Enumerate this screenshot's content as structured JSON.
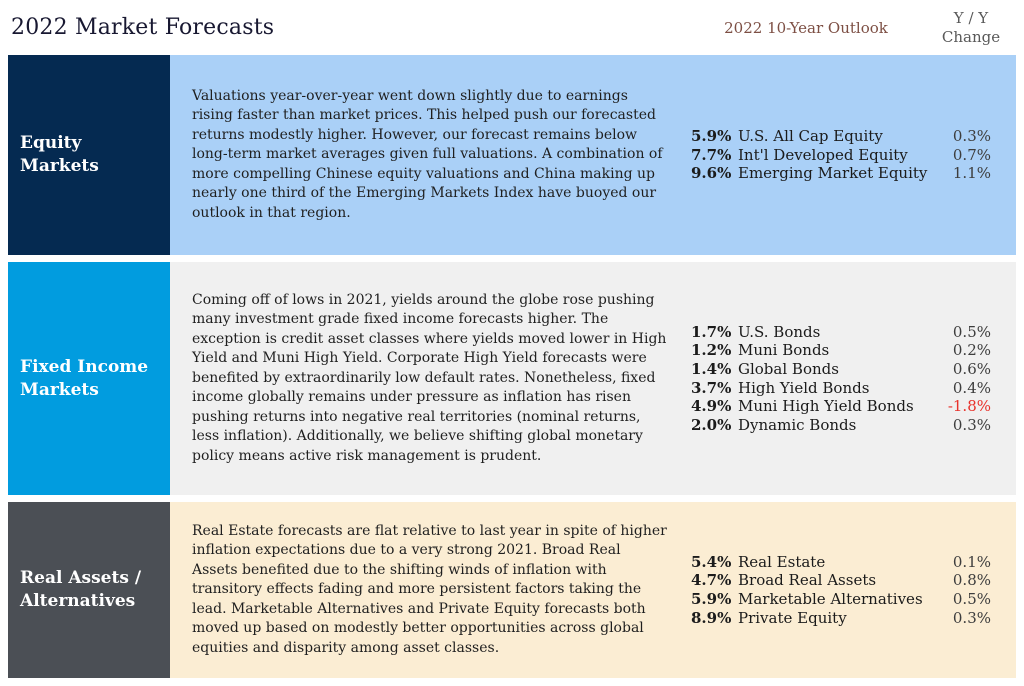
{
  "header": {
    "title": "2022 Market Forecasts",
    "outlook_label": "2022 10-Year Outlook",
    "yy_line1": "Y / Y",
    "yy_line2": "Change"
  },
  "colors": {
    "title_text": "#181831",
    "outlook_header_text": "#7d4f44",
    "yy_header_text": "#595959",
    "negative_change": "#e8322b",
    "equity_sidebar": "#052a51",
    "equity_background": "#aad0f7",
    "fixed_income_sidebar": "#019cdf",
    "fixed_income_background": "#f0f0f0",
    "real_assets_sidebar": "#4b4f55",
    "real_assets_background": "#fbedd3"
  },
  "sections": [
    {
      "id": "equity-markets",
      "label": "Equity Markets",
      "sidebar_color": "#052a51",
      "bg_color": "#aad0f7",
      "description": "Valuations year-over-year went down slightly due to earnings rising faster than market prices. This helped push our forecasted returns modestly higher. However, our forecast remains below long-term market averages given full valuations. A combination of more compelling Chinese equity valuations and China making up nearly one third of the Emerging Markets Index have buoyed our outlook in that region.",
      "rows": [
        {
          "forecast": "5.9%",
          "name": "U.S. All Cap Equity",
          "change": "0.3%",
          "negative": false
        },
        {
          "forecast": "7.7%",
          "name": "Int'l Developed Equity",
          "change": "0.7%",
          "negative": false
        },
        {
          "forecast": "9.6%",
          "name": "Emerging Market Equity",
          "change": "1.1%",
          "negative": false
        }
      ]
    },
    {
      "id": "fixed-income-markets",
      "label": "Fixed Income Markets",
      "sidebar_color": "#019cdf",
      "bg_color": "#f0f0f0",
      "description": "Coming off of lows in 2021, yields around the globe rose pushing many investment grade fixed income forecasts higher. The exception is credit asset classes where yields moved lower in High Yield and Muni High Yield. Corporate High Yield forecasts were benefited by extraordinarily low default rates. Nonetheless, fixed income globally remains under pressure as inflation has risen pushing returns into negative real territories (nominal returns, less inflation). Additionally, we believe shifting global monetary policy means active risk management is prudent.",
      "rows": [
        {
          "forecast": "1.7%",
          "name": "U.S. Bonds",
          "change": "0.5%",
          "negative": false
        },
        {
          "forecast": "1.2%",
          "name": "Muni Bonds",
          "change": "0.2%",
          "negative": false
        },
        {
          "forecast": "1.4%",
          "name": "Global Bonds",
          "change": "0.6%",
          "negative": false
        },
        {
          "forecast": "3.7%",
          "name": "High Yield Bonds",
          "change": "0.4%",
          "negative": false
        },
        {
          "forecast": "4.9%",
          "name": "Muni High Yield Bonds",
          "change": "-1.8%",
          "negative": true
        },
        {
          "forecast": "2.0%",
          "name": "Dynamic Bonds",
          "change": "0.3%",
          "negative": false
        }
      ]
    },
    {
      "id": "real-assets-alternatives",
      "label": "Real Assets / Alternatives",
      "sidebar_color": "#4b4f55",
      "bg_color": "#fbedd3",
      "description": "Real Estate forecasts are flat relative to last year in spite of higher inflation expectations due to a very strong 2021. Broad Real Assets benefited due to the shifting winds of inflation with transitory effects fading and more persistent factors taking the lead. Marketable Alternatives and Private Equity forecasts both moved up based on modestly better opportunities across global equities and disparity among asset classes.",
      "rows": [
        {
          "forecast": "5.4%",
          "name": "Real Estate",
          "change": "0.1%",
          "negative": false
        },
        {
          "forecast": "4.7%",
          "name": "Broad Real Assets",
          "change": "0.8%",
          "negative": false
        },
        {
          "forecast": "5.9%",
          "name": "Marketable Alternatives",
          "change": "0.5%",
          "negative": false
        },
        {
          "forecast": "8.9%",
          "name": "Private Equity",
          "change": "0.3%",
          "negative": false
        }
      ]
    }
  ]
}
